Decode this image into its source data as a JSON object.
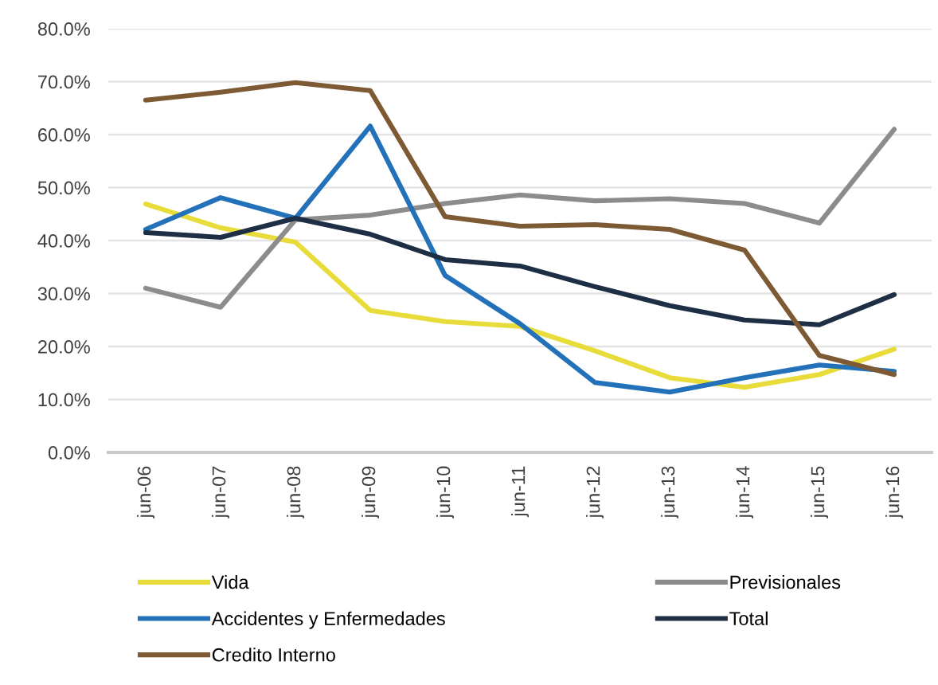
{
  "chart_data": {
    "type": "line",
    "categories": [
      "jun-06",
      "jun-07",
      "jun-08",
      "jun-09",
      "jun-10",
      "jun-11",
      "jun-12",
      "jun-13",
      "jun-14",
      "jun-15",
      "jun-16"
    ],
    "series": [
      {
        "name": "Vida",
        "color": "#e8dc3a",
        "values": [
          46.9,
          42.4,
          39.7,
          26.8,
          24.7,
          23.8,
          19.2,
          14.1,
          12.3,
          14.7,
          19.5
        ]
      },
      {
        "name": "Previsionales",
        "color": "#8c8c8c",
        "values": [
          31.0,
          27.4,
          43.9,
          44.8,
          47.0,
          48.6,
          47.5,
          47.9,
          47.0,
          43.3,
          61.0
        ]
      },
      {
        "name": "Accidentes y Enfermedades",
        "color": "#2372b9",
        "values": [
          42.1,
          48.1,
          44.2,
          61.6,
          33.4,
          24.3,
          13.2,
          11.4,
          14.1,
          16.5,
          15.3
        ]
      },
      {
        "name": "Total",
        "color": "#1e2e44",
        "values": [
          41.5,
          40.6,
          44.2,
          41.2,
          36.4,
          35.2,
          31.3,
          27.7,
          25.0,
          24.1,
          29.8
        ]
      },
      {
        "name": "Credito Interno",
        "color": "#7d5a34",
        "values": [
          66.5,
          68.0,
          69.8,
          68.3,
          44.5,
          42.7,
          43.0,
          42.1,
          38.2,
          18.3,
          14.7
        ]
      }
    ],
    "ylim": [
      0,
      80
    ],
    "yticks": [
      {
        "value": 0,
        "label": "0.0%"
      },
      {
        "value": 10,
        "label": "10.0%"
      },
      {
        "value": 20,
        "label": "20.0%"
      },
      {
        "value": 30,
        "label": "30.0%"
      },
      {
        "value": 40,
        "label": "40.0%"
      },
      {
        "value": 50,
        "label": "50.0%"
      },
      {
        "value": 60,
        "label": "60.0%"
      },
      {
        "value": 70,
        "label": "70.0%"
      },
      {
        "value": 80,
        "label": "80.0%"
      }
    ],
    "grid": "y",
    "legend": "bottom"
  }
}
